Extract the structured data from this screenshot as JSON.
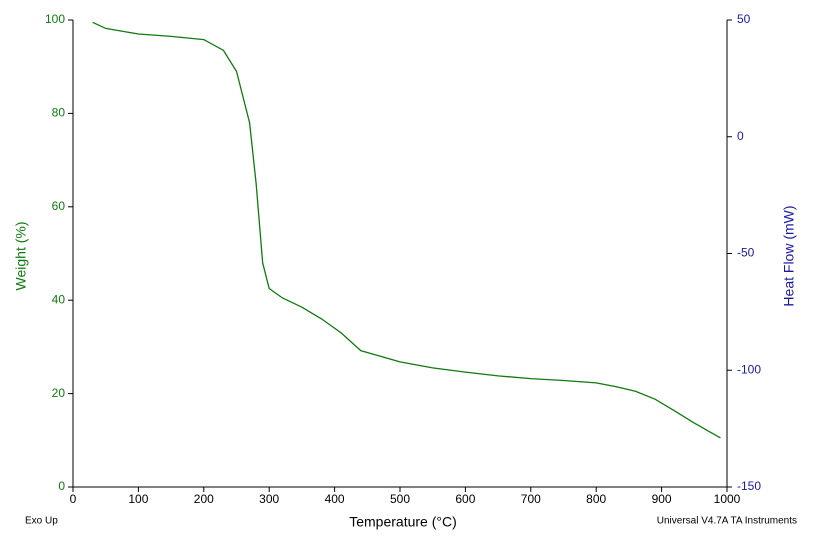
{
  "chart_data": {
    "type": "line",
    "x_label": "Temperature (°C)",
    "y_label": "Weight (%)",
    "y2_label": "Heat Flow (mW)",
    "footer_left": "Exo Up",
    "footer_right": "Universal V4.7A TA Instruments",
    "x": [
      30,
      50,
      100,
      150,
      200,
      230,
      250,
      270,
      280,
      290,
      300,
      320,
      350,
      380,
      410,
      440,
      470,
      500,
      550,
      600,
      650,
      700,
      750,
      800,
      830,
      860,
      890,
      920,
      950,
      990
    ],
    "series": [
      {
        "color": "#0f7a0f",
        "values": [
          99.5,
          98.2,
          97,
          96.5,
          95.8,
          93.5,
          89,
          78,
          65,
          48,
          42.5,
          40.5,
          38.5,
          36,
          33,
          29.2,
          28,
          26.8,
          25.5,
          24.6,
          23.8,
          23.2,
          22.8,
          22.3,
          21.5,
          20.5,
          18.8,
          16.3,
          13.7,
          10.5
        ]
      }
    ],
    "xlim": [
      0,
      1000
    ],
    "xticks": [
      0,
      100,
      200,
      300,
      400,
      500,
      600,
      700,
      800,
      900,
      1000
    ],
    "ylim": [
      0,
      100
    ],
    "yticks": [
      0,
      20,
      40,
      60,
      80,
      100
    ],
    "y_color": "#0f7a0f",
    "y2lim": [
      -150,
      50
    ],
    "y2ticks": [
      -150,
      -100,
      -50,
      0,
      50
    ],
    "y2_color": "#1a1aa0"
  }
}
